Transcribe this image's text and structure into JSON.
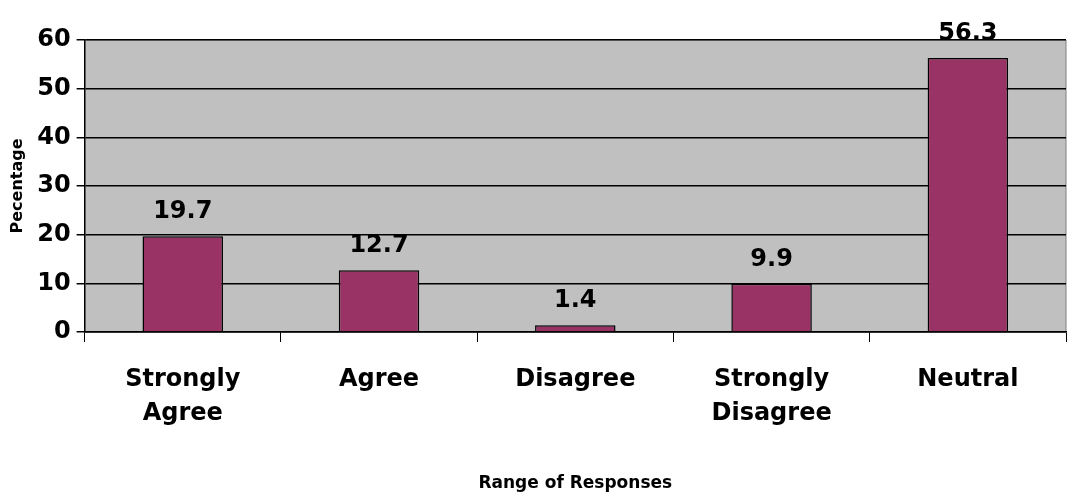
{
  "chart_data": {
    "type": "bar",
    "xlabel": "Range of Responses",
    "ylabel": "Pecentage",
    "categories": [
      "Strongly Agree",
      "Agree",
      "Disagree",
      "Strongly Disagree",
      "Neutral"
    ],
    "values": [
      19.7,
      12.7,
      1.4,
      9.9,
      56.3
    ],
    "color": "#993366",
    "ylim": [
      0,
      60
    ],
    "yticks": [
      0,
      10,
      20,
      30,
      40,
      50,
      60
    ],
    "grid": "y",
    "data_labels": true,
    "legend": false
  }
}
